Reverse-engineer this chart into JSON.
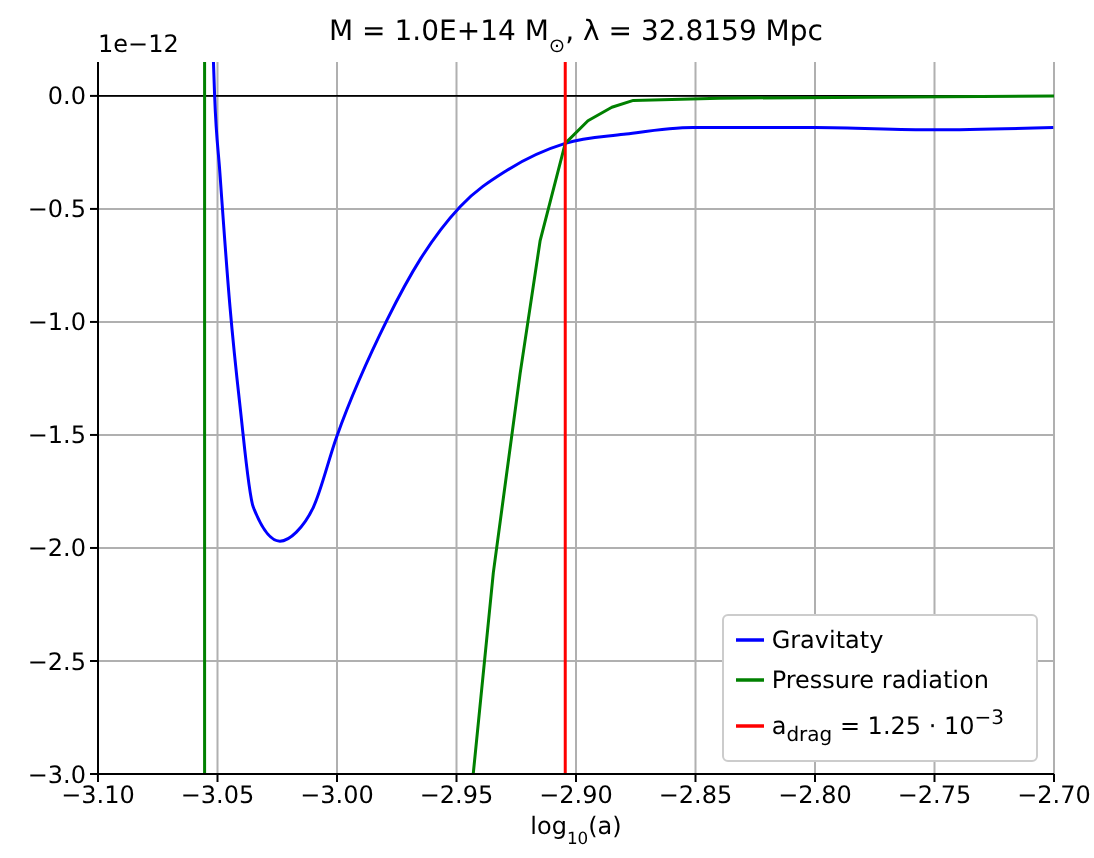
{
  "chart_data": {
    "type": "line",
    "title": "M = 1.0E+14 M$_{⊙}$, λ = 32.8159 Mpc",
    "xlabel": "log$_{10}$(a)",
    "annotations": [
      "1e−12"
    ],
    "xlim": [
      -3.1,
      -2.7
    ],
    "xticks": [
      {
        "value": -3.1,
        "label": "−3.10"
      },
      {
        "value": -3.05,
        "label": "−3.05"
      },
      {
        "value": -3.0,
        "label": "−3.00"
      },
      {
        "value": -2.95,
        "label": "−2.95"
      },
      {
        "value": -2.9,
        "label": "−2.90"
      },
      {
        "value": -2.85,
        "label": "−2.85"
      },
      {
        "value": -2.8,
        "label": "−2.80"
      },
      {
        "value": -2.75,
        "label": "−2.75"
      },
      {
        "value": -2.7,
        "label": "−2.70"
      }
    ],
    "ylim": [
      -3.0,
      0.15
    ],
    "yticks": [
      {
        "value": -3.0,
        "label": "−3.0"
      },
      {
        "value": -2.5,
        "label": "−2.5"
      },
      {
        "value": -2.0,
        "label": "−2.0"
      },
      {
        "value": -1.5,
        "label": "−1.5"
      },
      {
        "value": -1.0,
        "label": "−1.0"
      },
      {
        "value": -0.5,
        "label": "−0.5"
      },
      {
        "value": 0.0,
        "label": "0.0"
      }
    ],
    "grid": true,
    "legend": "bottom right",
    "ref_lines": [
      {
        "axis": "y",
        "value": 0,
        "color": "#000000"
      }
    ],
    "series": [
      {
        "name": "Gravitaty",
        "color": "#0000ff",
        "x": [
          -3.0517,
          -3.0512,
          -3.049,
          -3.0448,
          -3.0406,
          -3.035,
          -3.0239,
          -3.017,
          -3.0099,
          -3.0002,
          -2.979,
          -2.965,
          -2.9485,
          -2.929,
          -2.9045,
          -2.88,
          -2.851,
          -2.8,
          -2.7505,
          -2.7003
        ],
        "values": [
          0.15,
          0.0,
          -0.34,
          -0.93,
          -1.37,
          -1.82,
          -1.97,
          -1.93,
          -1.82,
          -1.51,
          -0.99,
          -0.72,
          -0.49,
          -0.33,
          -0.21,
          -0.17,
          -0.14,
          -0.14,
          -0.15,
          -0.14
        ]
      },
      {
        "name": "Pressure radiation",
        "color": "#008000",
        "x": [
          -3.0554,
          -3.0554,
          -3.0,
          -2.943,
          -2.9346,
          -2.9234,
          -2.915,
          -2.9045,
          -2.895,
          -2.885,
          -2.876,
          -2.84,
          -2.7
        ],
        "values": [
          -3.0,
          0.15,
          null,
          -3.0,
          -2.11,
          -1.23,
          -0.64,
          -0.21,
          -0.11,
          -0.05,
          -0.02,
          -0.01,
          0.0
        ]
      },
      {
        "name": "a$_{drag}$ = 1.25 · 10$^{−3}$",
        "color": "#ff0000",
        "x": [
          -2.9045,
          -2.9045
        ],
        "values": [
          -3.0,
          0.15
        ]
      }
    ]
  }
}
